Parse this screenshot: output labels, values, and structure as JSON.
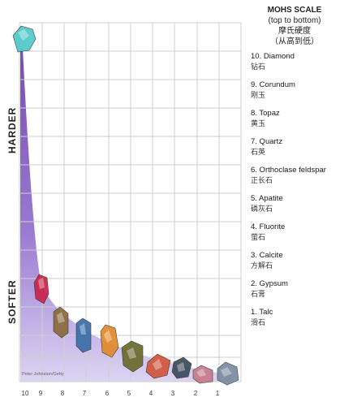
{
  "scale": {
    "title_en": "MOHS SCALE",
    "subtitle_en": "(top to bottom)",
    "title_cn": "摩氏硬度",
    "subtitle_cn": "（从高到低）"
  },
  "axis_labels": {
    "top": "HARDER",
    "bottom": "SOFTER"
  },
  "x_ticks": [
    "10",
    "9",
    "8",
    "7",
    "6",
    "5",
    "4",
    "3",
    "2",
    "1"
  ],
  "minerals": [
    {
      "rank": 10,
      "en": "10. Diamond",
      "cn": "钻石"
    },
    {
      "rank": 9,
      "en": "9. Corundum",
      "cn": "刚玉"
    },
    {
      "rank": 8,
      "en": "8. Topaz",
      "cn": "黄玉"
    },
    {
      "rank": 7,
      "en": "7. Quartz",
      "cn": "石英"
    },
    {
      "rank": 6,
      "en": "6. Orthoclase feldspar",
      "cn": "正长石"
    },
    {
      "rank": 5,
      "en": "5. Apatite",
      "cn": "磷灰石"
    },
    {
      "rank": 4,
      "en": "4. Fluorite",
      "cn": "萤石"
    },
    {
      "rank": 3,
      "en": "3. Calcite",
      "cn": "方解石"
    },
    {
      "rank": 2,
      "en": "2. Gypsum",
      "cn": "石膏"
    },
    {
      "rank": 1,
      "en": "1. Talc",
      "cn": "滑石"
    }
  ],
  "credit": "Peter Johnston/Getty",
  "crystals": [
    {
      "name": "diamond",
      "color": "#4fc8c8"
    },
    {
      "name": "corundum",
      "color": "#c8244a"
    },
    {
      "name": "topaz",
      "color": "#8a6a3a"
    },
    {
      "name": "quartz",
      "color": "#3a6ea8"
    },
    {
      "name": "orthoclase",
      "color": "#e08a2a"
    },
    {
      "name": "apatite",
      "color": "#6a6a2a"
    },
    {
      "name": "fluorite",
      "color": "#d0553a"
    },
    {
      "name": "calcite",
      "color": "#3a4a5a"
    },
    {
      "name": "gypsum",
      "color": "#c87a8a"
    },
    {
      "name": "talc",
      "color": "#7a8aa0"
    }
  ],
  "colors": {
    "gradient_top": "#6a3aa8",
    "gradient_bottom": "#d8cff0",
    "grid": "#cfcfcf"
  }
}
